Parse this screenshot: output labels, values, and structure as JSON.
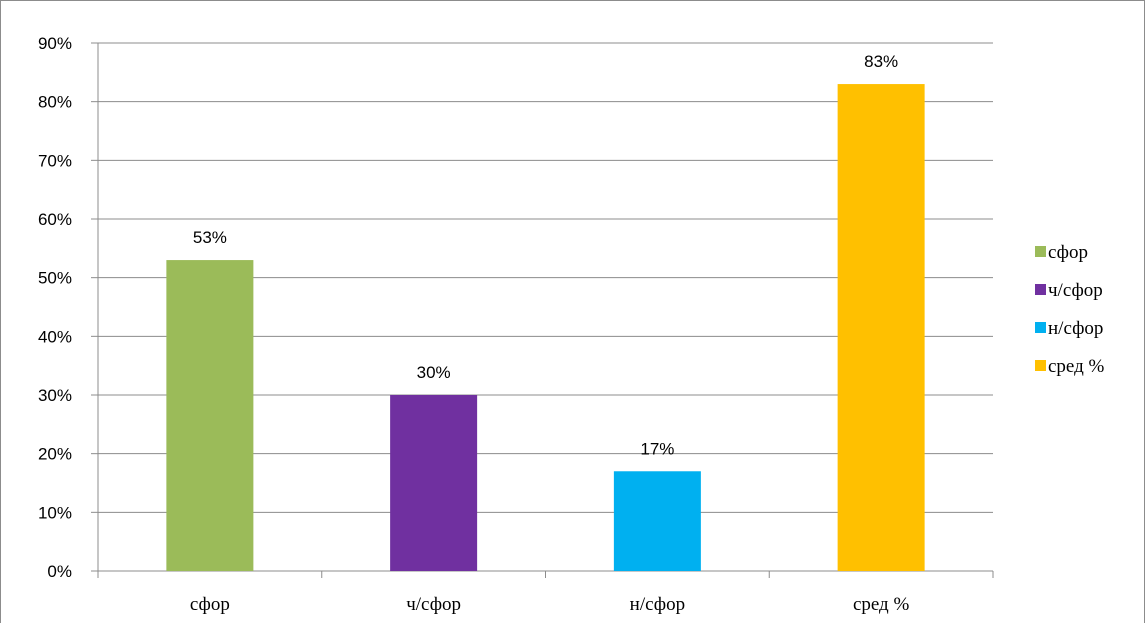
{
  "chart_data": {
    "type": "bar",
    "title": "",
    "xlabel": "",
    "ylabel": "",
    "categories": [
      "сфор",
      "ч/сфор",
      "н/сфор",
      "сред %"
    ],
    "values": [
      53,
      30,
      17,
      83
    ],
    "data_labels": [
      "53%",
      "30%",
      "17%",
      "83%"
    ],
    "colors": [
      "#9bbb59",
      "#7030a0",
      "#00b0f0",
      "#ffc000"
    ],
    "ylim": [
      0,
      90
    ],
    "ytick_values": [
      0,
      10,
      20,
      30,
      40,
      50,
      60,
      70,
      80,
      90
    ],
    "ytick_labels": [
      "0%",
      "10%",
      "20%",
      "30%",
      "40%",
      "50%",
      "60%",
      "70%",
      "80%",
      "90%"
    ],
    "grid": true,
    "legend": {
      "placement": "right",
      "entries": [
        "сфор",
        "ч/сфор",
        "н/сфор",
        "сред %"
      ]
    }
  }
}
